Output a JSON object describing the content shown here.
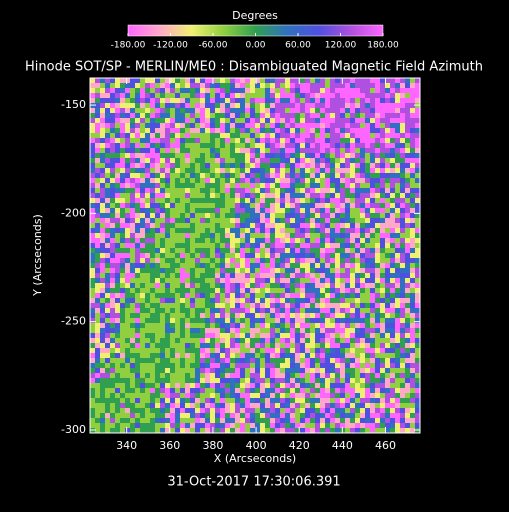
{
  "chart_data": {
    "type": "image",
    "title": "Hinode SOT/SP - MERLIN/ME0 : Disambiguated Magnetic Field Azimuth",
    "colorbar_label": "Degrees",
    "colorbar_lim": [
      -180,
      180
    ],
    "colorbar_ticks": [
      {
        "value": -180,
        "label": "-180.00"
      },
      {
        "value": -120,
        "label": "-120.00"
      },
      {
        "value": -60,
        "label": "-60.00"
      },
      {
        "value": 0,
        "label": "0.00"
      },
      {
        "value": 60,
        "label": "60.00"
      },
      {
        "value": 120,
        "label": "120.00"
      },
      {
        "value": 180,
        "label": "180.00"
      }
    ],
    "colormap": [
      "#ff66ff",
      "#ffa8c8",
      "#f0f070",
      "#90d040",
      "#30a050",
      "#3070c0",
      "#5050e0",
      "#b050e0",
      "#ff66ff"
    ],
    "x_label": "X (Arcseconds)",
    "y_label": "Y (Arcseconds)",
    "xlim": [
      323,
      476
    ],
    "xticks": [
      340,
      360,
      380,
      400,
      420,
      440,
      460
    ],
    "ylim": [
      -301.4,
      -137.5
    ],
    "yticks": [
      -150,
      -200,
      -250,
      -300
    ],
    "date_label": "31-Oct-2017 17:30:06.391"
  }
}
